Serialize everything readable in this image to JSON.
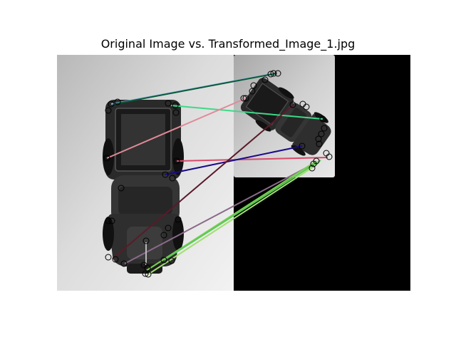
{
  "figure": {
    "title": "Original Image vs. Transformed_Image_1.jpg"
  },
  "images": {
    "left": {
      "content": "grayscale photo of a toy pickup truck, top-down view"
    },
    "right": {
      "content": "rotated and shrunken copy of the truck photo on a black background"
    }
  },
  "colors": {
    "keypoint_circle": "#000000",
    "match_lines": [
      "#7fb0d8",
      "#0a5a3a",
      "#3ed888",
      "#e08a98",
      "#d84a6a",
      "#1a0a8a",
      "#5a1a2a",
      "#8a6a8a",
      "#7ad050",
      "#a0e070",
      "#5ac85a",
      "#b8b8b8"
    ]
  }
}
